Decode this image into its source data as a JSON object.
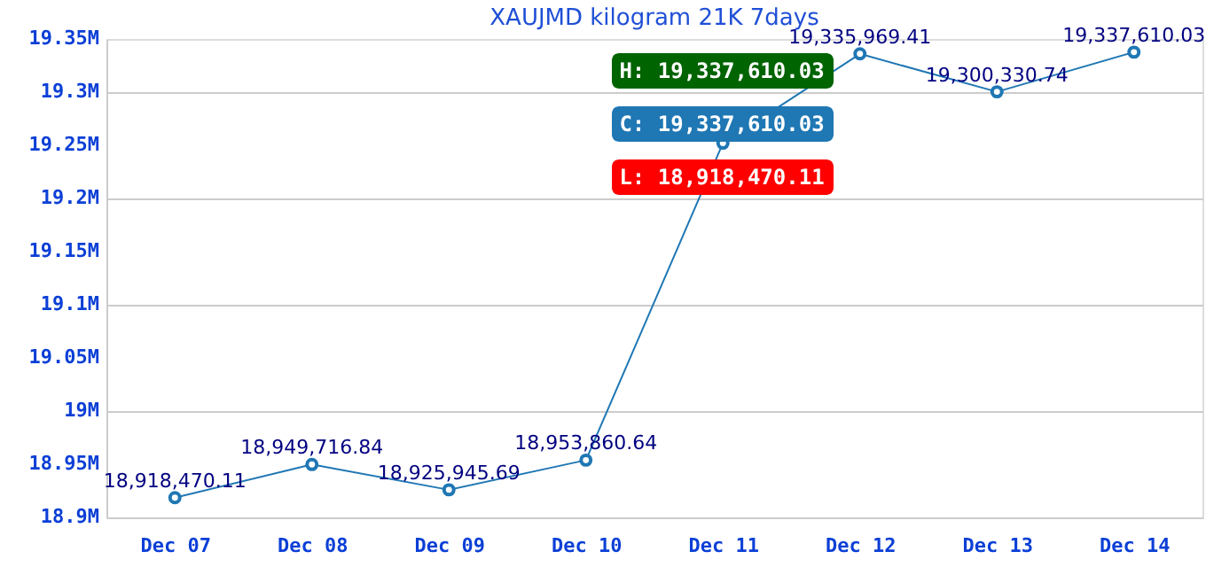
{
  "chart_data": {
    "type": "line",
    "title": "XAUJMD kilogram 21K 7days",
    "categories": [
      "Dec 07",
      "Dec 08",
      "Dec 09",
      "Dec 10",
      "Dec 11",
      "Dec 12",
      "Dec 13",
      "Dec 14"
    ],
    "series": [
      {
        "color": "#1f77b4",
        "values": [
          18918470.11,
          18949716.84,
          18925945.69,
          18953860.64,
          19252000,
          19335969.41,
          19300330.74,
          19337610.03
        ]
      }
    ],
    "value_labels": [
      "18,918,470.11",
      "18,949,716.84",
      "18,925,945.69",
      "18,953,860.64",
      null,
      "19,335,969.41",
      "19,300,330.74",
      "19,337,610.03"
    ],
    "ylim": [
      18900000,
      19350000
    ],
    "yticks": [
      {
        "value": 18900000,
        "label": "18.9M"
      },
      {
        "value": 18950000,
        "label": "18.95M"
      },
      {
        "value": 19000000,
        "label": "19M"
      },
      {
        "value": 19050000,
        "label": "19.05M"
      },
      {
        "value": 19100000,
        "label": "19.1M"
      },
      {
        "value": 19150000,
        "label": "19.15M"
      },
      {
        "value": 19200000,
        "label": "19.2M"
      },
      {
        "value": 19250000,
        "label": "19.25M"
      },
      {
        "value": 19300000,
        "label": "19.3M"
      },
      {
        "value": 19350000,
        "label": "19.35M"
      }
    ],
    "grid": "y",
    "marker": "circle",
    "line_style": "solid",
    "annotations": [
      "H: 19,337,610.03",
      "C: 19,337,610.03",
      "L: 18,918,470.11"
    ]
  }
}
